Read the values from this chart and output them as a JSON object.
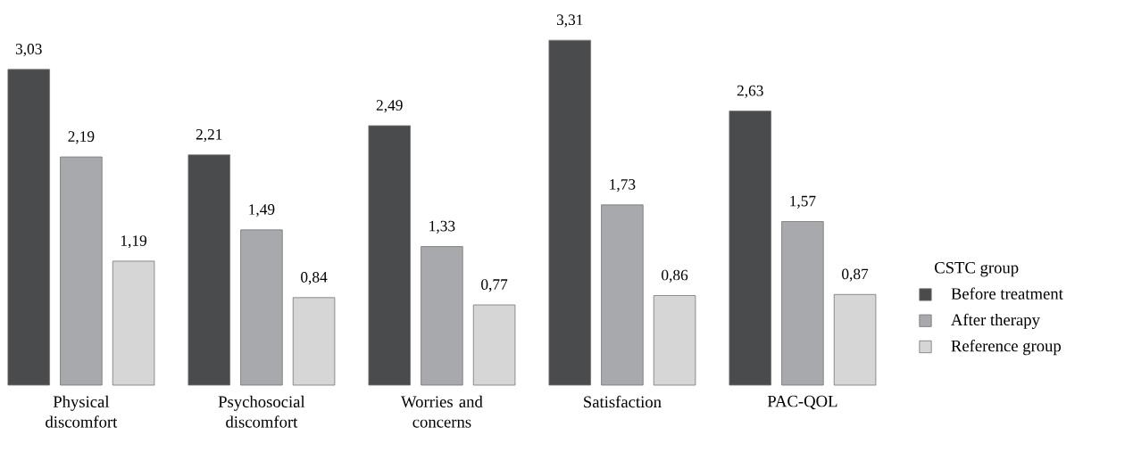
{
  "chart_data": {
    "type": "bar",
    "categories": [
      "Physical discomfort",
      "Psychosocial discomfort",
      "Worries and concerns",
      "Satisfaction",
      "PAC-QOL"
    ],
    "legend_title": "CSTC group",
    "legend": "right",
    "series": [
      {
        "name": "Before treatment",
        "color": "#4a4b4d",
        "values": [
          3.03,
          2.21,
          2.49,
          3.31,
          2.63
        ],
        "value_labels": [
          "3,03",
          "2,21",
          "2,49",
          "3,31",
          "2,63"
        ]
      },
      {
        "name": "After therapy",
        "color": "#a8a9ac",
        "values": [
          2.19,
          1.49,
          1.33,
          1.73,
          1.57
        ],
        "value_labels": [
          "2,19",
          "1,49",
          "1,33",
          "1,73",
          "1,57"
        ]
      },
      {
        "name": "Reference group",
        "color": "#d6d6d6",
        "values": [
          1.19,
          0.84,
          0.77,
          0.86,
          0.87
        ],
        "value_labels": [
          "1,19",
          "0,84",
          "0,77",
          "0,86",
          "0,87"
        ]
      }
    ]
  }
}
